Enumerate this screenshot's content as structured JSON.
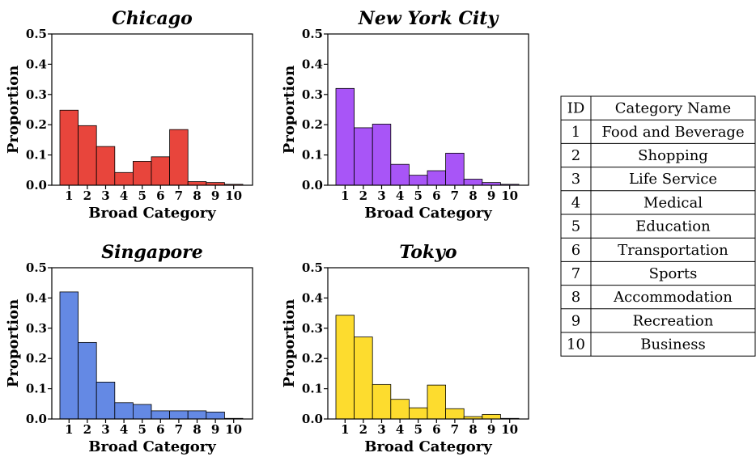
{
  "chart_data": [
    {
      "type": "bar",
      "title": "Chicago",
      "xlabel": "Broad Category",
      "ylabel": "Proportion",
      "categories": [
        "1",
        "2",
        "3",
        "4",
        "5",
        "6",
        "7",
        "8",
        "9",
        "10"
      ],
      "values": [
        0.248,
        0.197,
        0.128,
        0.042,
        0.079,
        0.094,
        0.184,
        0.012,
        0.009,
        0.003
      ],
      "ylim": [
        0,
        0.5
      ],
      "yticks": [
        "0.0",
        "0.1",
        "0.2",
        "0.3",
        "0.4",
        "0.5"
      ],
      "color": "#E8453C"
    },
    {
      "type": "bar",
      "title": "New York City",
      "xlabel": "Broad Category",
      "ylabel": "Proportion",
      "categories": [
        "1",
        "2",
        "3",
        "4",
        "5",
        "6",
        "7",
        "8",
        "9",
        "10"
      ],
      "values": [
        0.32,
        0.19,
        0.202,
        0.069,
        0.033,
        0.048,
        0.106,
        0.02,
        0.009,
        0.003
      ],
      "ylim": [
        0,
        0.5
      ],
      "yticks": [
        "0.0",
        "0.1",
        "0.2",
        "0.3",
        "0.4",
        "0.5"
      ],
      "color": "#A855F7"
    },
    {
      "type": "bar",
      "title": "Singapore",
      "xlabel": "Broad Category",
      "ylabel": "Proportion",
      "categories": [
        "1",
        "2",
        "3",
        "4",
        "5",
        "6",
        "7",
        "8",
        "9",
        "10"
      ],
      "values": [
        0.42,
        0.253,
        0.122,
        0.054,
        0.048,
        0.027,
        0.027,
        0.027,
        0.023,
        0.002
      ],
      "ylim": [
        0,
        0.5
      ],
      "yticks": [
        "0.0",
        "0.1",
        "0.2",
        "0.3",
        "0.4",
        "0.5"
      ],
      "color": "#6489E4"
    },
    {
      "type": "bar",
      "title": "Tokyo",
      "xlabel": "Broad Category",
      "ylabel": "Proportion",
      "categories": [
        "1",
        "2",
        "3",
        "4",
        "5",
        "6",
        "7",
        "8",
        "9",
        "10"
      ],
      "values": [
        0.343,
        0.271,
        0.114,
        0.065,
        0.037,
        0.112,
        0.034,
        0.008,
        0.015,
        0.002
      ],
      "ylim": [
        0,
        0.5
      ],
      "yticks": [
        "0.0",
        "0.1",
        "0.2",
        "0.3",
        "0.4",
        "0.5"
      ],
      "color": "#FDDC2E"
    }
  ],
  "table": {
    "headers": [
      "ID",
      "Category Name"
    ],
    "rows": [
      [
        "1",
        "Food and Beverage"
      ],
      [
        "2",
        "Shopping"
      ],
      [
        "3",
        "Life Service"
      ],
      [
        "4",
        "Medical"
      ],
      [
        "5",
        "Education"
      ],
      [
        "6",
        "Transportation"
      ],
      [
        "7",
        "Sports"
      ],
      [
        "8",
        "Accommodation"
      ],
      [
        "9",
        "Recreation"
      ],
      [
        "10",
        "Business"
      ]
    ]
  }
}
